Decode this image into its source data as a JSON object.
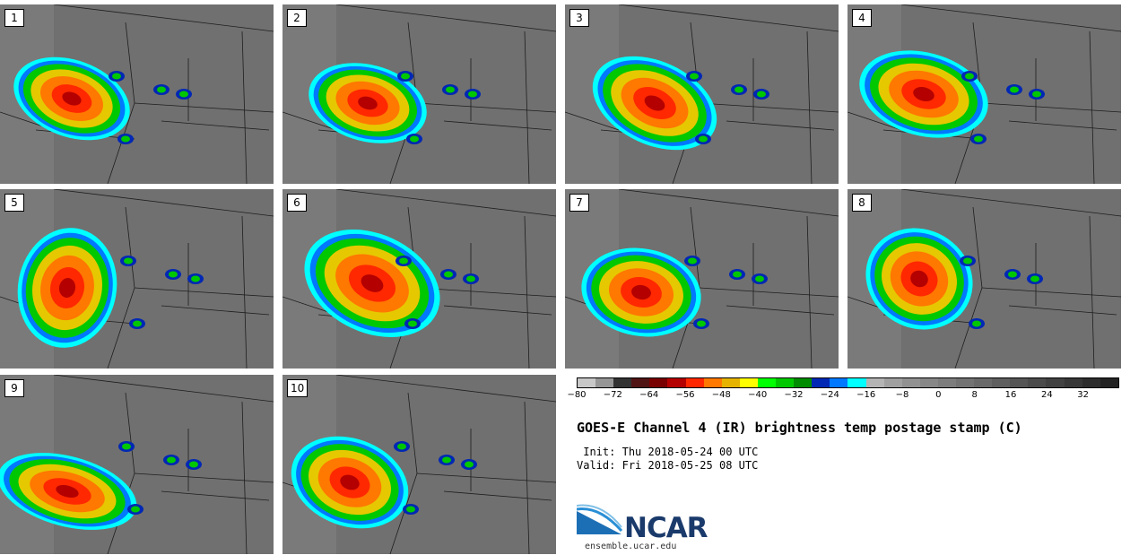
{
  "figure": {
    "title": "GOES-E Channel 4 (IR) brightness temp postage stamp (C)",
    "init_label": "Init:",
    "init_value": "Thu 2018-05-24 00 UTC",
    "valid_label": "Valid:",
    "valid_value": "Fri 2018-05-25 08 UTC",
    "logo_text": "NCAR",
    "logo_url": "ensemble.ucar.edu"
  },
  "panels": [
    {
      "label": "1"
    },
    {
      "label": "2"
    },
    {
      "label": "3"
    },
    {
      "label": "4"
    },
    {
      "label": "5"
    },
    {
      "label": "6"
    },
    {
      "label": "7"
    },
    {
      "label": "8"
    },
    {
      "label": "9"
    },
    {
      "label": "10"
    }
  ],
  "colorbar": {
    "min": -80,
    "max": 40,
    "tick_values": [
      -80,
      -72,
      -64,
      -56,
      -48,
      -40,
      -32,
      -24,
      -16,
      -8,
      0,
      8,
      16,
      24,
      32
    ],
    "tick_labels": [
      "−80",
      "−72",
      "−64",
      "−56",
      "−48",
      "−40",
      "−32",
      "−24",
      "−16",
      "−8",
      "0",
      "8",
      "16",
      "24",
      "32"
    ],
    "colors": [
      "#c8c8c8",
      "#969696",
      "#323232",
      "#501414",
      "#780000",
      "#b40000",
      "#ff2800",
      "#ff7800",
      "#e6b400",
      "#ffff00",
      "#00ff00",
      "#00c800",
      "#008c00",
      "#0028b4",
      "#0078ff",
      "#00ffff",
      "#b4b4b4",
      "#a0a0a0",
      "#919191",
      "#878787",
      "#7d7d7d",
      "#737373",
      "#696969",
      "#5f5f5f",
      "#555555",
      "#4b4b4b",
      "#414141",
      "#373737",
      "#2d2d2d",
      "#232323"
    ]
  }
}
